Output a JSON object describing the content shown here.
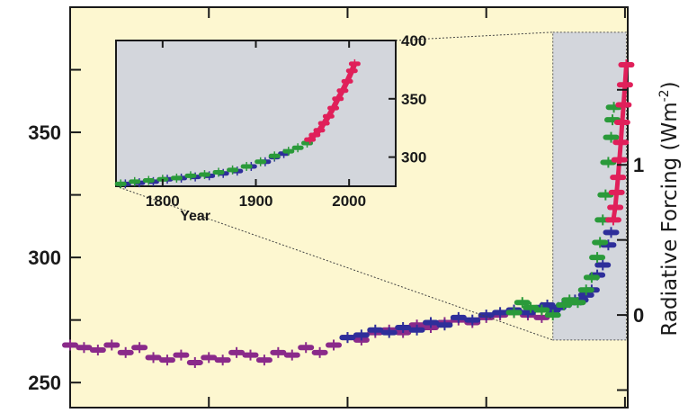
{
  "chart_data": {
    "type": "scatter",
    "ylabel_right": "Radiative Forcing (Wm",
    "ylabel_right_sup": "-2",
    "ylabel_right_close": ")",
    "ylim": [
      240,
      400
    ],
    "yticks": [
      "250",
      "300",
      "350"
    ],
    "right_ticks": [
      "0",
      "1"
    ],
    "xlim": [
      0,
      2010
    ],
    "series": [
      {
        "color": "#8a2a8a",
        "points": [
          [
            0,
            265
          ],
          [
            50,
            264
          ],
          [
            100,
            263
          ],
          [
            150,
            265
          ],
          [
            200,
            262
          ],
          [
            250,
            264
          ],
          [
            300,
            260
          ],
          [
            350,
            259
          ],
          [
            400,
            261
          ],
          [
            450,
            258
          ],
          [
            500,
            260
          ],
          [
            550,
            259
          ],
          [
            600,
            262
          ],
          [
            650,
            261
          ],
          [
            700,
            259
          ],
          [
            750,
            262
          ],
          [
            800,
            261
          ],
          [
            850,
            264
          ],
          [
            900,
            262
          ],
          [
            950,
            265
          ],
          [
            1000,
            268
          ],
          [
            1050,
            267
          ],
          [
            1100,
            270
          ],
          [
            1150,
            271
          ],
          [
            1200,
            270
          ],
          [
            1250,
            273
          ],
          [
            1300,
            272
          ],
          [
            1350,
            274
          ],
          [
            1400,
            275
          ],
          [
            1450,
            274
          ],
          [
            1500,
            276
          ],
          [
            1550,
            277
          ],
          [
            1600,
            278
          ],
          [
            1650,
            277
          ],
          [
            1700,
            276
          ]
        ]
      },
      {
        "color": "#2e2e9a",
        "points": [
          [
            1000,
            268
          ],
          [
            1050,
            269
          ],
          [
            1100,
            271
          ],
          [
            1150,
            270
          ],
          [
            1200,
            272
          ],
          [
            1250,
            271
          ],
          [
            1300,
            274
          ],
          [
            1350,
            273
          ],
          [
            1400,
            276
          ],
          [
            1450,
            275
          ],
          [
            1500,
            277
          ],
          [
            1550,
            278
          ],
          [
            1600,
            279
          ],
          [
            1650,
            278
          ],
          [
            1700,
            280
          ],
          [
            1720,
            281
          ],
          [
            1740,
            279
          ],
          [
            1760,
            280
          ],
          [
            1780,
            281
          ],
          [
            1800,
            282
          ],
          [
            1820,
            283
          ],
          [
            1840,
            283
          ],
          [
            1860,
            285
          ],
          [
            1880,
            287
          ],
          [
            1900,
            293
          ],
          [
            1920,
            297
          ],
          [
            1940,
            305
          ],
          [
            1950,
            310
          ]
        ]
      },
      {
        "color": "#2a9a3a",
        "points": [
          [
            1600,
            278
          ],
          [
            1630,
            282
          ],
          [
            1660,
            280
          ],
          [
            1700,
            279
          ],
          [
            1740,
            277
          ],
          [
            1780,
            281
          ],
          [
            1800,
            283
          ],
          [
            1830,
            282
          ],
          [
            1860,
            287
          ],
          [
            1880,
            292
          ],
          [
            1900,
            300
          ],
          [
            1910,
            306
          ],
          [
            1920,
            315
          ],
          [
            1930,
            325
          ],
          [
            1940,
            338
          ],
          [
            1950,
            348
          ],
          [
            1955,
            355
          ],
          [
            1960,
            360
          ]
        ]
      },
      {
        "color": "#e0205a",
        "points": [
          [
            1958,
            315
          ],
          [
            1965,
            320
          ],
          [
            1970,
            326
          ],
          [
            1975,
            332
          ],
          [
            1980,
            339
          ],
          [
            1985,
            346
          ],
          [
            1990,
            354
          ],
          [
            1995,
            361
          ],
          [
            2000,
            369
          ],
          [
            2005,
            377
          ]
        ]
      }
    ],
    "inset": {
      "xlabel": "Year",
      "xticks": [
        "1800",
        "1900",
        "2000"
      ],
      "yticks": [
        "300",
        "350",
        "400"
      ],
      "xlim": [
        1750,
        2050
      ],
      "ylim": [
        275,
        400
      ],
      "series": [
        {
          "color": "#2e2e9a",
          "points": [
            [
              1760,
              277
            ],
            [
              1775,
              278
            ],
            [
              1790,
              279
            ],
            [
              1805,
              281
            ],
            [
              1820,
              282
            ],
            [
              1835,
              283
            ],
            [
              1850,
              284
            ],
            [
              1865,
              286
            ],
            [
              1880,
              288
            ],
            [
              1895,
              292
            ],
            [
              1910,
              296
            ],
            [
              1920,
              300
            ],
            [
              1930,
              303
            ]
          ]
        },
        {
          "color": "#2a9a3a",
          "points": [
            [
              1755,
              277
            ],
            [
              1770,
              279
            ],
            [
              1785,
              280
            ],
            [
              1800,
              281
            ],
            [
              1815,
              282
            ],
            [
              1830,
              284
            ],
            [
              1845,
              285
            ],
            [
              1860,
              287
            ],
            [
              1875,
              289
            ],
            [
              1890,
              292
            ],
            [
              1905,
              296
            ],
            [
              1920,
              301
            ],
            [
              1935,
              305
            ],
            [
              1945,
              308
            ],
            [
              1955,
              312
            ]
          ]
        },
        {
          "color": "#e0205a",
          "points": [
            [
              1958,
              315
            ],
            [
              1963,
              319
            ],
            [
              1968,
              323
            ],
            [
              1973,
              329
            ],
            [
              1978,
              335
            ],
            [
              1983,
              342
            ],
            [
              1988,
              350
            ],
            [
              1993,
              357
            ],
            [
              1998,
              365
            ],
            [
              2003,
              374
            ],
            [
              2006,
              380
            ]
          ]
        }
      ]
    }
  }
}
